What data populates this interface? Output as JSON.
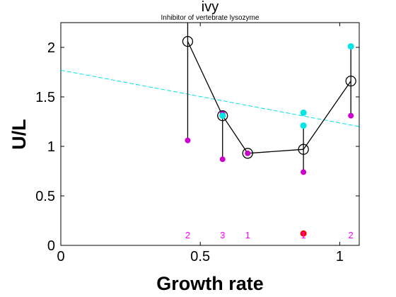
{
  "chart_data": {
    "type": "scatter",
    "title": "ivy",
    "subtitle": "Inhibitor of vertebrate lysozyme",
    "xlabel": "Growth rate",
    "ylabel": "U/L",
    "xlim": [
      0,
      1.07
    ],
    "ylim": [
      0,
      2.25
    ],
    "xticks": [
      0,
      0.5,
      1
    ],
    "xtick_labels": [
      "0",
      "0.5",
      "1"
    ],
    "yticks": [
      0,
      0.5,
      1,
      1.5,
      2
    ],
    "ytick_labels": [
      "0",
      "0.5",
      "1",
      "1.5",
      "2"
    ],
    "grid": false,
    "legend": "none",
    "colors": {
      "mean_line": "#000000",
      "trend_line": "#00e5e5",
      "low_points": "#cc00cc",
      "high_points": "#00e5e5",
      "outlier_point": "#ff0000",
      "count_labels": "#ff00ff"
    },
    "means": [
      {
        "x": 0.455,
        "y": 2.06
      },
      {
        "x": 0.58,
        "y": 1.31
      },
      {
        "x": 0.67,
        "y": 0.93
      },
      {
        "x": 0.87,
        "y": 0.97
      },
      {
        "x": 1.04,
        "y": 1.66
      }
    ],
    "ranges": [
      {
        "x": 0.455,
        "low": 1.06,
        "high": 2.25
      },
      {
        "x": 0.58,
        "low": 0.87,
        "high": 1.34
      },
      {
        "x": 0.87,
        "low": 0.74,
        "high": 1.21
      },
      {
        "x": 1.04,
        "low": 1.31,
        "high": 2.01
      }
    ],
    "low_points": [
      {
        "x": 0.455,
        "y": 1.06
      },
      {
        "x": 0.58,
        "y": 0.87
      },
      {
        "x": 0.58,
        "y": 1.33
      },
      {
        "x": 0.67,
        "y": 0.93
      },
      {
        "x": 0.87,
        "y": 0.74
      },
      {
        "x": 1.04,
        "y": 1.31
      }
    ],
    "high_points": [
      {
        "x": 0.58,
        "y": 1.31
      },
      {
        "x": 0.87,
        "y": 1.34
      },
      {
        "x": 0.87,
        "y": 1.21
      },
      {
        "x": 1.04,
        "y": 2.01
      }
    ],
    "outlier_points": [
      {
        "x": 0.87,
        "y": 0.12
      }
    ],
    "trend_line": {
      "x": [
        0,
        1.07
      ],
      "y": [
        1.77,
        1.2
      ]
    },
    "count_labels": [
      {
        "x": 0.455,
        "y": 0.1,
        "text": "2"
      },
      {
        "x": 0.58,
        "y": 0.1,
        "text": "3"
      },
      {
        "x": 0.67,
        "y": 0.1,
        "text": "1"
      },
      {
        "x": 0.87,
        "y": 0.1,
        "text": "1"
      },
      {
        "x": 1.04,
        "y": 0.1,
        "text": "2"
      }
    ]
  }
}
